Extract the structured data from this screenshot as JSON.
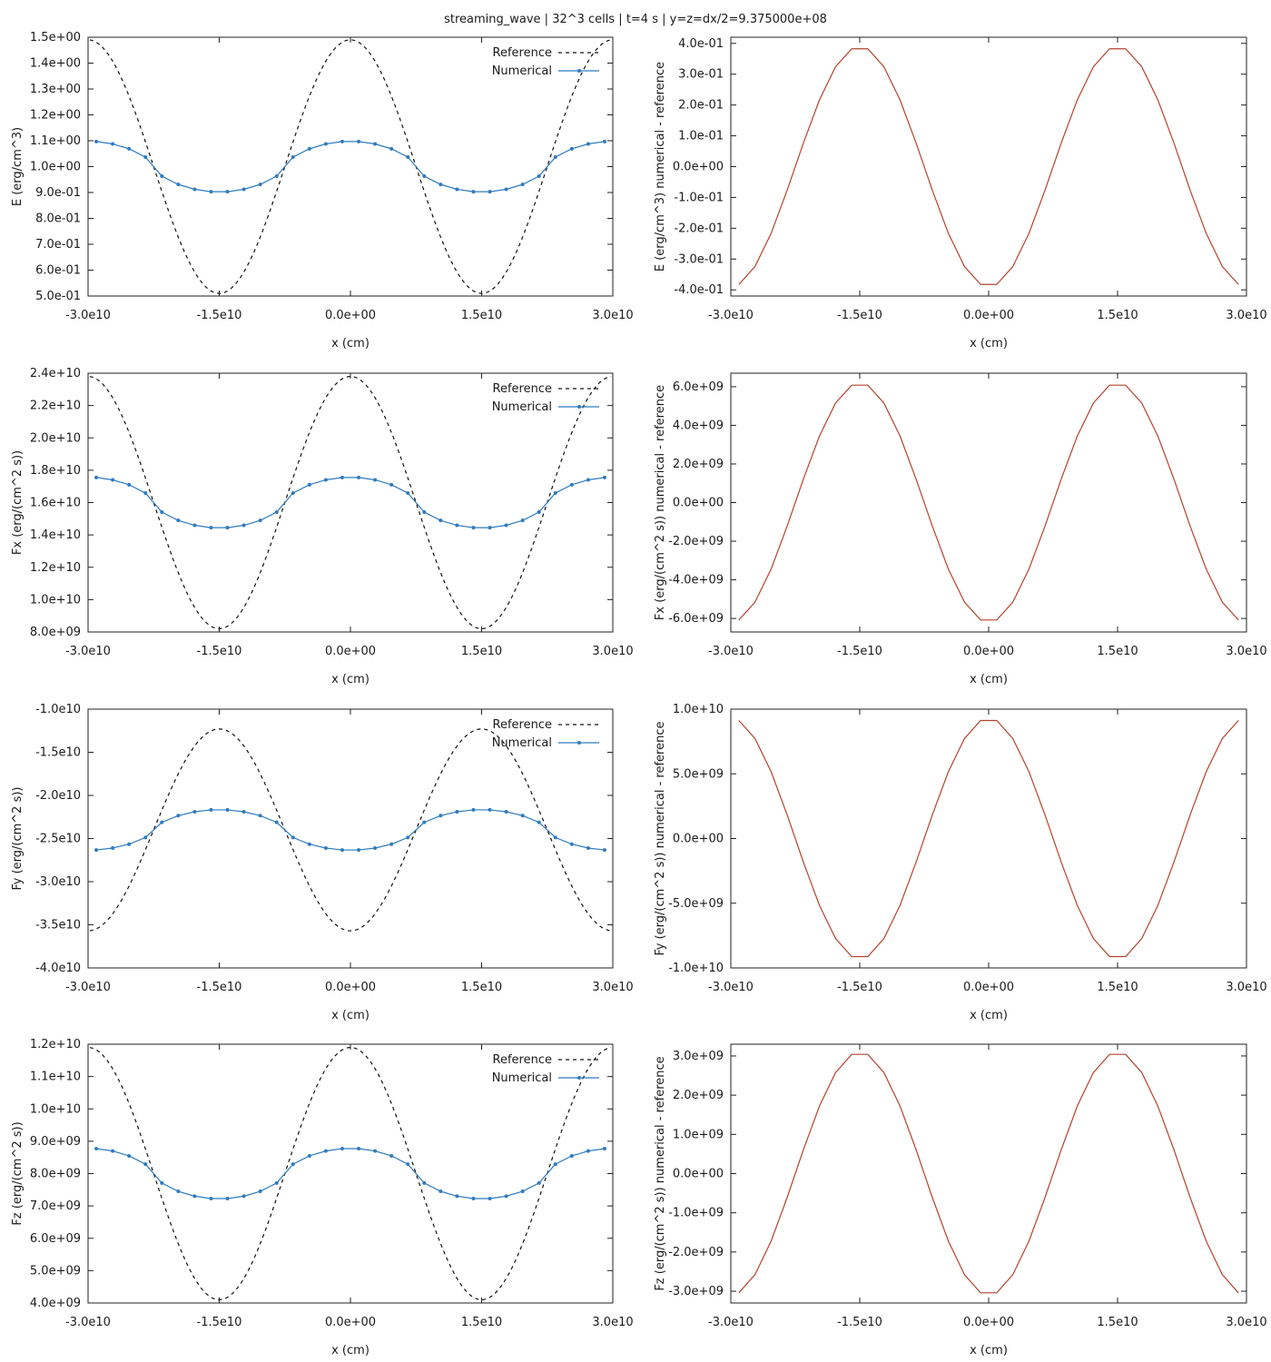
{
  "figure_title": "streaming_wave | 32^3 cells | t=4 s | y=z=dx/2=9.375000e+08",
  "colors": {
    "numerical": "#2f7bbf",
    "reference": "#111111",
    "difference": "#b5432e"
  },
  "chart_data": [
    {
      "type": "line",
      "xlabel": "x (cm)",
      "ylabel": "E (erg/cm^3)",
      "xlim": [
        -30000000000.0,
        30000000000.0
      ],
      "ylim": [
        0.5,
        1.5
      ],
      "x_ticks": [
        -30000000000.0,
        -15000000000.0,
        0,
        15000000000.0,
        30000000000.0
      ],
      "x_tick_labels": [
        "-3.0e10",
        "-1.5e10",
        "0.0e+00",
        "1.5e10",
        "3.0e10"
      ],
      "y_ticks": [
        0.5,
        0.6,
        0.7,
        0.8,
        0.9,
        1.0,
        1.1,
        1.2,
        1.3,
        1.4,
        1.5
      ],
      "y_tick_labels": [
        "5.0e-01",
        "6.0e-01",
        "7.0e-01",
        "8.0e-01",
        "9.0e-01",
        "1.0e+00",
        "1.1e+00",
        "1.2e+00",
        "1.3e+00",
        "1.4e+00",
        "1.5e+00"
      ],
      "legend": {
        "position": "top-right",
        "entries": [
          "Reference",
          "Numerical"
        ]
      },
      "grid": false,
      "series": [
        {
          "name": "Reference",
          "style": "dashed",
          "mean": 1.0,
          "amplitude": 0.49,
          "wavelength": 30000000000.0,
          "phase": 0
        },
        {
          "name": "Numerical",
          "style": "line-points",
          "mean": 1.0,
          "amplitude": 0.098,
          "wavelength": 30000000000.0,
          "phase": 0,
          "flatten": 0.25
        }
      ]
    },
    {
      "type": "line",
      "xlabel": "x (cm)",
      "ylabel": "E (erg/cm^3) numerical - reference",
      "xlim": [
        -30000000000.0,
        30000000000.0
      ],
      "ylim": [
        -0.42,
        0.42
      ],
      "x_ticks": [
        -30000000000.0,
        -15000000000.0,
        0,
        15000000000.0,
        30000000000.0
      ],
      "x_tick_labels": [
        "-3.0e10",
        "-1.5e10",
        "0.0e+00",
        "1.5e10",
        "3.0e10"
      ],
      "y_ticks": [
        -0.4,
        -0.3,
        -0.2,
        -0.1,
        0,
        0.1,
        0.2,
        0.3,
        0.4
      ],
      "y_tick_labels": [
        "-4.0e-01",
        "-3.0e-01",
        "-2.0e-01",
        "-1.0e-01",
        "0.0e+00",
        "1.0e-01",
        "2.0e-01",
        "3.0e-01",
        "4.0e-01"
      ],
      "grid": false,
      "series": [
        {
          "name": "",
          "style": "line",
          "mean": 0,
          "amplitude": 0.39,
          "wavelength": 30000000000.0,
          "phase": 3.14159
        }
      ]
    },
    {
      "type": "line",
      "xlabel": "x (cm)",
      "ylabel": "Fx (erg/(cm^2 s))",
      "xlim": [
        -30000000000.0,
        30000000000.0
      ],
      "ylim": [
        8000000000.0,
        24000000000.0
      ],
      "x_ticks": [
        -30000000000.0,
        -15000000000.0,
        0,
        15000000000.0,
        30000000000.0
      ],
      "x_tick_labels": [
        "-3.0e10",
        "-1.5e10",
        "0.0e+00",
        "1.5e10",
        "3.0e10"
      ],
      "y_ticks": [
        8000000000.0,
        10000000000.0,
        12000000000.0,
        14000000000.0,
        16000000000.0,
        18000000000.0,
        20000000000.0,
        22000000000.0,
        24000000000.0
      ],
      "y_tick_labels": [
        "8.0e+09",
        "1.0e+10",
        "1.2e+10",
        "1.4e+10",
        "1.6e+10",
        "1.8e+10",
        "2.0e+10",
        "2.2e+10",
        "2.4e+10"
      ],
      "legend": {
        "position": "top-right",
        "entries": [
          "Reference",
          "Numerical"
        ]
      },
      "grid": false,
      "series": [
        {
          "name": "Reference",
          "style": "dashed",
          "mean": 16000000000.0,
          "amplitude": 7800000000.0,
          "wavelength": 30000000000.0,
          "phase": 0
        },
        {
          "name": "Numerical",
          "style": "line-points",
          "mean": 16000000000.0,
          "amplitude": 1570000000.0,
          "wavelength": 30000000000.0,
          "phase": 0,
          "flatten": 0.25
        }
      ]
    },
    {
      "type": "line",
      "xlabel": "x (cm)",
      "ylabel": "Fx (erg/(cm^2 s)) numerical - reference",
      "xlim": [
        -30000000000.0,
        30000000000.0
      ],
      "ylim": [
        -6700000000.0,
        6700000000.0
      ],
      "x_ticks": [
        -30000000000.0,
        -15000000000.0,
        0,
        15000000000.0,
        30000000000.0
      ],
      "x_tick_labels": [
        "-3.0e10",
        "-1.5e10",
        "0.0e+00",
        "1.5e10",
        "3.0e10"
      ],
      "y_ticks": [
        -6000000000.0,
        -4000000000.0,
        -2000000000.0,
        0,
        2000000000.0,
        4000000000.0,
        6000000000.0
      ],
      "y_tick_labels": [
        "-6.0e+09",
        "-4.0e+09",
        "-2.0e+09",
        "0.0e+00",
        "2.0e+09",
        "4.0e+09",
        "6.0e+09"
      ],
      "grid": false,
      "series": [
        {
          "name": "",
          "style": "line",
          "mean": 0,
          "amplitude": 6200000000.0,
          "wavelength": 30000000000.0,
          "phase": 3.14159
        }
      ]
    },
    {
      "type": "line",
      "xlabel": "x (cm)",
      "ylabel": "Fy (erg/(cm^2 s))",
      "xlim": [
        -30000000000.0,
        30000000000.0
      ],
      "ylim": [
        -40000000000.0,
        -10000000000.0
      ],
      "x_ticks": [
        -30000000000.0,
        -15000000000.0,
        0,
        15000000000.0,
        30000000000.0
      ],
      "x_tick_labels": [
        "-3.0e10",
        "-1.5e10",
        "0.0e+00",
        "1.5e10",
        "3.0e10"
      ],
      "y_ticks": [
        -40000000000.0,
        -35000000000.0,
        -30000000000.0,
        -25000000000.0,
        -20000000000.0,
        -15000000000.0,
        -10000000000.0
      ],
      "y_tick_labels": [
        "-4.0e10",
        "-3.5e10",
        "-3.0e10",
        "-2.5e10",
        "-2.0e10",
        "-1.5e10",
        "-1.0e10"
      ],
      "legend": {
        "position": "top-right",
        "entries": [
          "Reference",
          "Numerical"
        ]
      },
      "grid": false,
      "series": [
        {
          "name": "Reference",
          "style": "dashed",
          "mean": -24000000000.0,
          "amplitude": 11700000000.0,
          "wavelength": 30000000000.0,
          "phase": 3.14159
        },
        {
          "name": "Numerical",
          "style": "line-points",
          "mean": -24000000000.0,
          "amplitude": 2350000000.0,
          "wavelength": 30000000000.0,
          "phase": 3.14159,
          "flatten": 0.25
        }
      ]
    },
    {
      "type": "line",
      "xlabel": "x (cm)",
      "ylabel": "Fy (erg/(cm^2 s)) numerical - reference",
      "xlim": [
        -30000000000.0,
        30000000000.0
      ],
      "ylim": [
        -10000000000.0,
        10000000000.0
      ],
      "x_ticks": [
        -30000000000.0,
        -15000000000.0,
        0,
        15000000000.0,
        30000000000.0
      ],
      "x_tick_labels": [
        "-3.0e10",
        "-1.5e10",
        "0.0e+00",
        "1.5e10",
        "3.0e10"
      ],
      "y_ticks": [
        -10000000000.0,
        -5000000000.0,
        0,
        5000000000.0,
        10000000000.0
      ],
      "y_tick_labels": [
        "-1.0e+10",
        "-5.0e+09",
        "0.0e+00",
        "5.0e+09",
        "1.0e+10"
      ],
      "grid": false,
      "series": [
        {
          "name": "",
          "style": "line",
          "mean": 0,
          "amplitude": 9300000000.0,
          "wavelength": 30000000000.0,
          "phase": 0
        }
      ]
    },
    {
      "type": "line",
      "xlabel": "x (cm)",
      "ylabel": "Fz (erg/(cm^2 s))",
      "xlim": [
        -30000000000.0,
        30000000000.0
      ],
      "ylim": [
        4000000000.0,
        12000000000.0
      ],
      "x_ticks": [
        -30000000000.0,
        -15000000000.0,
        0,
        15000000000.0,
        30000000000.0
      ],
      "x_tick_labels": [
        "-3.0e10",
        "-1.5e10",
        "0.0e+00",
        "1.5e10",
        "3.0e10"
      ],
      "y_ticks": [
        4000000000.0,
        5000000000.0,
        6000000000.0,
        7000000000.0,
        8000000000.0,
        9000000000.0,
        10000000000.0,
        11000000000.0,
        12000000000.0
      ],
      "y_tick_labels": [
        "4.0e+09",
        "5.0e+09",
        "6.0e+09",
        "7.0e+09",
        "8.0e+09",
        "9.0e+09",
        "1.0e+10",
        "1.1e+10",
        "1.2e+10"
      ],
      "legend": {
        "position": "top-right",
        "entries": [
          "Reference",
          "Numerical"
        ]
      },
      "grid": false,
      "series": [
        {
          "name": "Reference",
          "style": "dashed",
          "mean": 8000000000.0,
          "amplitude": 3900000000.0,
          "wavelength": 30000000000.0,
          "phase": 0
        },
        {
          "name": "Numerical",
          "style": "line-points",
          "mean": 8000000000.0,
          "amplitude": 780000000.0,
          "wavelength": 30000000000.0,
          "phase": 0,
          "flatten": 0.25
        }
      ]
    },
    {
      "type": "line",
      "xlabel": "x (cm)",
      "ylabel": "Fz (erg/(cm^2 s)) numerical - reference",
      "xlim": [
        -30000000000.0,
        30000000000.0
      ],
      "ylim": [
        -3300000000.0,
        3300000000.0
      ],
      "x_ticks": [
        -30000000000.0,
        -15000000000.0,
        0,
        15000000000.0,
        30000000000.0
      ],
      "x_tick_labels": [
        "-3.0e10",
        "-1.5e10",
        "0.0e+00",
        "1.5e10",
        "3.0e10"
      ],
      "y_ticks": [
        -3000000000.0,
        -2000000000.0,
        -1000000000.0,
        0,
        1000000000.0,
        2000000000.0,
        3000000000.0
      ],
      "y_tick_labels": [
        "-3.0e+09",
        "-2.0e+09",
        "-1.0e+09",
        "0.0e+00",
        "1.0e+09",
        "2.0e+09",
        "3.0e+09"
      ],
      "grid": false,
      "series": [
        {
          "name": "",
          "style": "line",
          "mean": 0,
          "amplitude": 3100000000.0,
          "wavelength": 30000000000.0,
          "phase": 3.14159
        }
      ]
    }
  ]
}
